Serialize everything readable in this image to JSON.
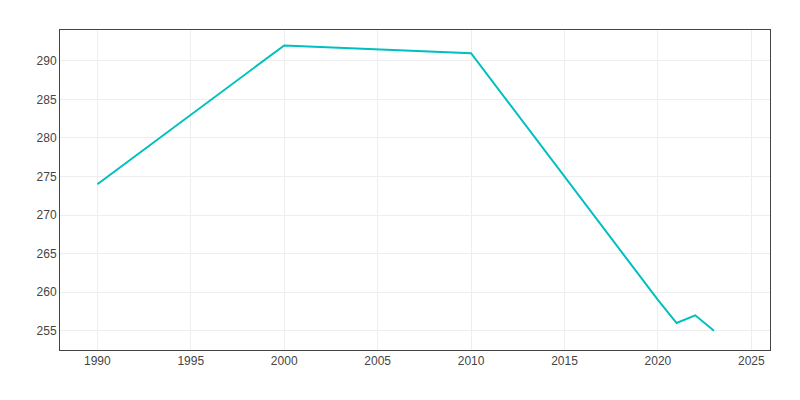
{
  "chart_data": {
    "type": "line",
    "x": [
      1990,
      2000,
      2010,
      2020,
      2021,
      2022,
      2023
    ],
    "values": [
      274,
      292,
      291,
      259,
      256,
      257,
      255
    ],
    "color": "#00BFBF",
    "xlim": [
      1988,
      2026
    ],
    "ylim": [
      252.5,
      294
    ],
    "xticks": [
      1990,
      1995,
      2000,
      2005,
      2010,
      2015,
      2020,
      2025
    ],
    "yticks": [
      255,
      260,
      265,
      270,
      275,
      280,
      285,
      290
    ],
    "grid": true
  }
}
